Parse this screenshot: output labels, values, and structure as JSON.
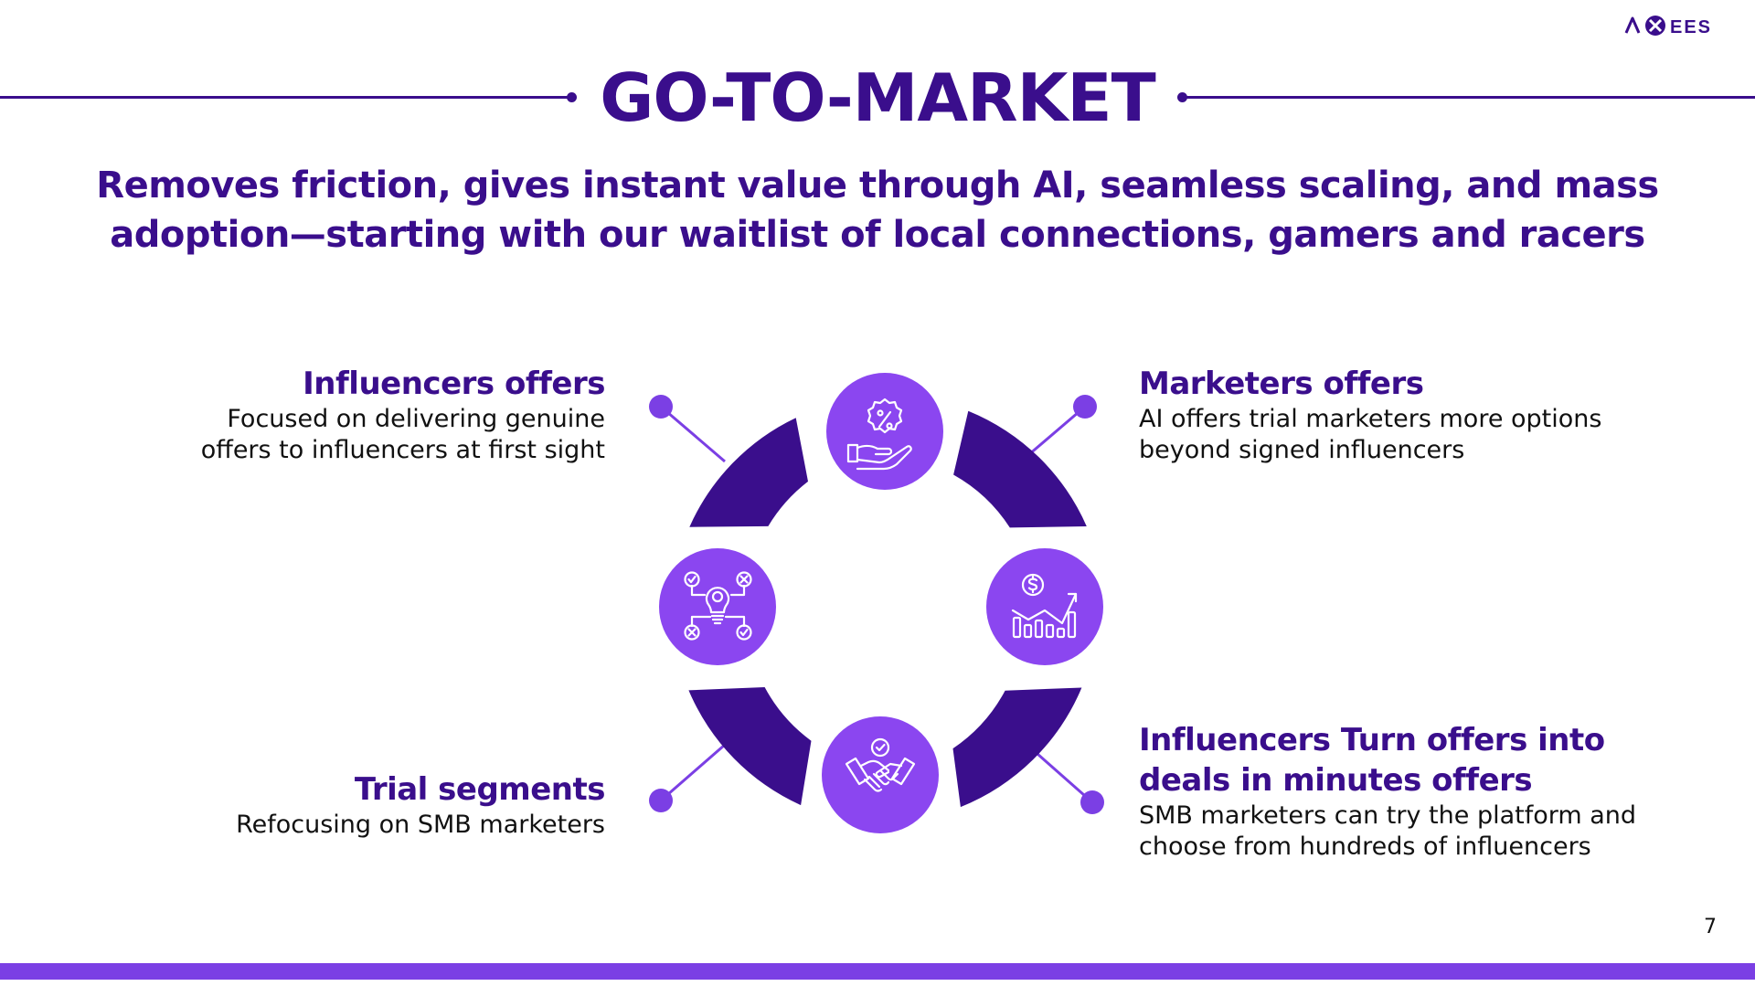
{
  "brand": {
    "logo_text": "AXEES",
    "primary": "#3a0e8c",
    "accent": "#8b46f0",
    "bar": "#7b3fe4"
  },
  "header": {
    "title": "GO-TO-MARKET",
    "subtitle": "Removes friction, gives instant value through AI, seamless scaling, and mass adoption—starting with our waitlist of local connections, gamers and racers"
  },
  "items": [
    {
      "title": "Influencers offers",
      "text": "Focused on delivering genuine offers to influencers at first sight",
      "icon": "hand-percent-icon"
    },
    {
      "title": "Marketers offers",
      "text": "AI offers trial marketers more options beyond signed influencers",
      "icon": "growth-chart-icon"
    },
    {
      "title": "Trial segments",
      "text": "Refocusing on SMB marketers",
      "icon": "idea-bulb-icon"
    },
    {
      "title": "Influencers Turn offers into deals in minutes offers",
      "text": "SMB marketers can try the platform and choose from hundreds of influencers",
      "icon": "handshake-icon"
    }
  ],
  "footer": {
    "page_number": "7"
  }
}
